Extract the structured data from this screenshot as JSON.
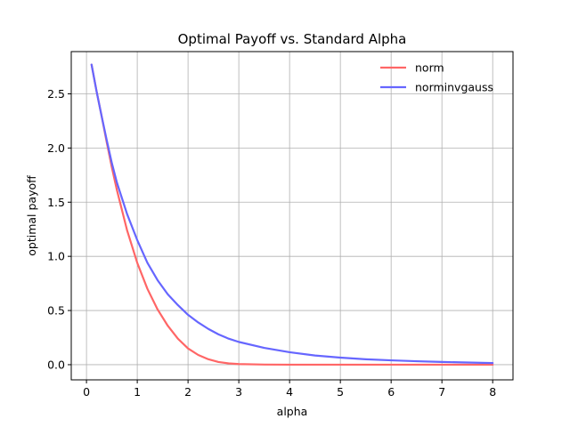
{
  "chart_data": {
    "type": "line",
    "title": "Optimal Payoff vs. Standard Alpha",
    "xlabel": "alpha",
    "ylabel": "optimal payoff",
    "xlim": [
      -0.3,
      8.4
    ],
    "ylim": [
      -0.14,
      2.89
    ],
    "xticks": [
      0,
      1,
      2,
      3,
      4,
      5,
      6,
      7,
      8
    ],
    "yticks": [
      0.0,
      0.5,
      1.0,
      1.5,
      2.0,
      2.5
    ],
    "xtick_labels": [
      "0",
      "1",
      "2",
      "3",
      "4",
      "5",
      "6",
      "7",
      "8"
    ],
    "ytick_labels": [
      "0.0",
      "0.5",
      "1.0",
      "1.5",
      "2.0",
      "2.5"
    ],
    "grid": true,
    "legend_position": "top-right",
    "x": [
      0.1,
      0.2,
      0.3,
      0.4,
      0.5,
      0.6,
      0.8,
      1.0,
      1.2,
      1.4,
      1.6,
      1.8,
      2.0,
      2.2,
      2.4,
      2.6,
      2.8,
      3.0,
      3.5,
      4.0,
      4.5,
      5.0,
      5.5,
      6.0,
      6.5,
      7.0,
      7.5,
      8.0
    ],
    "series": [
      {
        "name": "norm",
        "color": "#ff6666",
        "values": [
          2.77,
          2.52,
          2.29,
          2.05,
          1.82,
          1.61,
          1.24,
          0.94,
          0.7,
          0.51,
          0.36,
          0.24,
          0.15,
          0.09,
          0.05,
          0.025,
          0.012,
          0.006,
          0.001,
          0.0,
          0.0,
          0.0,
          0.0,
          0.0,
          0.0,
          0.0,
          0.0,
          0.0
        ]
      },
      {
        "name": "norminvgauss",
        "color": "#6666ff",
        "values": [
          2.77,
          2.52,
          2.29,
          2.07,
          1.86,
          1.68,
          1.39,
          1.15,
          0.94,
          0.78,
          0.65,
          0.55,
          0.46,
          0.39,
          0.33,
          0.28,
          0.24,
          0.21,
          0.155,
          0.115,
          0.085,
          0.065,
          0.05,
          0.04,
          0.032,
          0.025,
          0.02,
          0.015
        ]
      }
    ]
  }
}
